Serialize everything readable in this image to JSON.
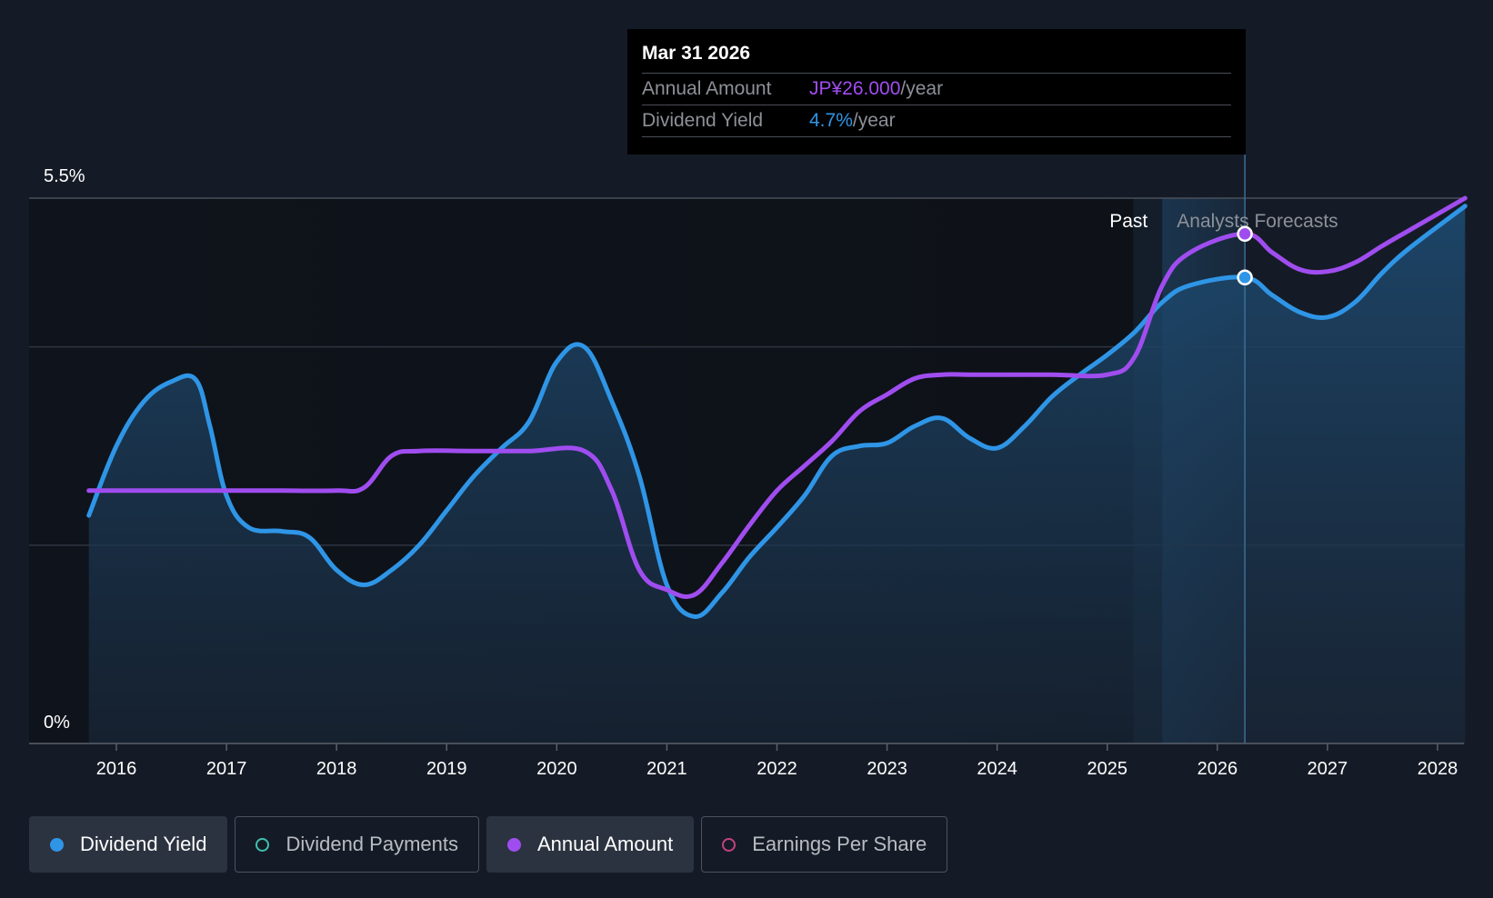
{
  "chart_data": {
    "type": "line",
    "x_axis": {
      "tick_labels": [
        "2016",
        "2017",
        "2018",
        "2019",
        "2020",
        "2021",
        "2022",
        "2023",
        "2024",
        "2025",
        "2026",
        "2027",
        "2028"
      ],
      "range": [
        2015.75,
        2028.25
      ]
    },
    "y_axis": {
      "tick_labels": [
        "5.5%",
        "0%"
      ],
      "range": [
        0,
        5.5
      ],
      "unit": "%"
    },
    "regions": {
      "past_label": "Past",
      "forecast_label": "Analysts Forecasts",
      "boundary_year": 2025.5
    },
    "series": [
      {
        "name": "Dividend Yield",
        "color": "#2f95e6",
        "filled": true,
        "points": [
          [
            2015.75,
            2.3
          ],
          [
            2016.0,
            3.0
          ],
          [
            2016.25,
            3.45
          ],
          [
            2016.5,
            3.65
          ],
          [
            2016.72,
            3.67
          ],
          [
            2016.85,
            3.2
          ],
          [
            2017.0,
            2.5
          ],
          [
            2017.2,
            2.18
          ],
          [
            2017.5,
            2.14
          ],
          [
            2017.75,
            2.08
          ],
          [
            2018.0,
            1.75
          ],
          [
            2018.25,
            1.6
          ],
          [
            2018.5,
            1.75
          ],
          [
            2018.75,
            2.0
          ],
          [
            2019.0,
            2.35
          ],
          [
            2019.25,
            2.7
          ],
          [
            2019.5,
            2.98
          ],
          [
            2019.75,
            3.25
          ],
          [
            2020.0,
            3.85
          ],
          [
            2020.25,
            4.0
          ],
          [
            2020.5,
            3.45
          ],
          [
            2020.75,
            2.7
          ],
          [
            2021.0,
            1.6
          ],
          [
            2021.25,
            1.28
          ],
          [
            2021.5,
            1.52
          ],
          [
            2021.75,
            1.88
          ],
          [
            2022.0,
            2.18
          ],
          [
            2022.25,
            2.5
          ],
          [
            2022.5,
            2.9
          ],
          [
            2022.75,
            3.0
          ],
          [
            2023.0,
            3.03
          ],
          [
            2023.25,
            3.2
          ],
          [
            2023.5,
            3.28
          ],
          [
            2023.75,
            3.08
          ],
          [
            2024.0,
            2.98
          ],
          [
            2024.25,
            3.2
          ],
          [
            2024.5,
            3.5
          ],
          [
            2024.75,
            3.72
          ],
          [
            2025.0,
            3.92
          ],
          [
            2025.25,
            4.15
          ],
          [
            2025.5,
            4.45
          ],
          [
            2025.75,
            4.62
          ],
          [
            2026.25,
            4.7
          ],
          [
            2026.5,
            4.52
          ],
          [
            2026.75,
            4.35
          ],
          [
            2027.0,
            4.3
          ],
          [
            2027.25,
            4.45
          ],
          [
            2027.5,
            4.75
          ],
          [
            2027.75,
            5.0
          ],
          [
            2028.25,
            5.42
          ]
        ]
      },
      {
        "name": "Annual Amount",
        "color": "#a04df0",
        "filled": false,
        "points": [
          [
            2015.75,
            2.55
          ],
          [
            2016.0,
            2.55
          ],
          [
            2016.5,
            2.55
          ],
          [
            2017.0,
            2.55
          ],
          [
            2017.5,
            2.55
          ],
          [
            2018.0,
            2.55
          ],
          [
            2018.25,
            2.58
          ],
          [
            2018.5,
            2.9
          ],
          [
            2018.75,
            2.95
          ],
          [
            2019.25,
            2.95
          ],
          [
            2019.75,
            2.95
          ],
          [
            2020.25,
            2.95
          ],
          [
            2020.5,
            2.55
          ],
          [
            2020.75,
            1.75
          ],
          [
            2021.0,
            1.55
          ],
          [
            2021.25,
            1.5
          ],
          [
            2021.5,
            1.82
          ],
          [
            2021.75,
            2.2
          ],
          [
            2022.0,
            2.55
          ],
          [
            2022.25,
            2.8
          ],
          [
            2022.5,
            3.05
          ],
          [
            2022.75,
            3.35
          ],
          [
            2023.0,
            3.52
          ],
          [
            2023.25,
            3.68
          ],
          [
            2023.5,
            3.72
          ],
          [
            2023.75,
            3.72
          ],
          [
            2024.0,
            3.72
          ],
          [
            2024.5,
            3.72
          ],
          [
            2025.0,
            3.72
          ],
          [
            2025.25,
            3.9
          ],
          [
            2025.5,
            4.62
          ],
          [
            2025.75,
            4.95
          ],
          [
            2026.25,
            5.14
          ],
          [
            2026.5,
            4.95
          ],
          [
            2026.75,
            4.78
          ],
          [
            2027.0,
            4.76
          ],
          [
            2027.25,
            4.85
          ],
          [
            2027.5,
            5.02
          ],
          [
            2027.75,
            5.18
          ],
          [
            2028.25,
            5.5
          ]
        ]
      }
    ],
    "highlight": {
      "year": 2026.25
    },
    "tooltip": {
      "date": "Mar 31 2026",
      "rows": [
        {
          "label": "Annual Amount",
          "value": "JP¥26.000",
          "unit": "/year",
          "color": "#a04df0"
        },
        {
          "label": "Dividend Yield",
          "value": "4.7%",
          "unit": "/year",
          "color": "#2f95e6"
        }
      ]
    },
    "legend": [
      {
        "label": "Dividend Yield",
        "color": "#2f95e6",
        "active": true
      },
      {
        "label": "Dividend Payments",
        "color": "#3fc1b0",
        "active": false
      },
      {
        "label": "Annual Amount",
        "color": "#a04df0",
        "active": true
      },
      {
        "label": "Earnings Per Share",
        "color": "#c2417f",
        "active": false
      }
    ]
  }
}
